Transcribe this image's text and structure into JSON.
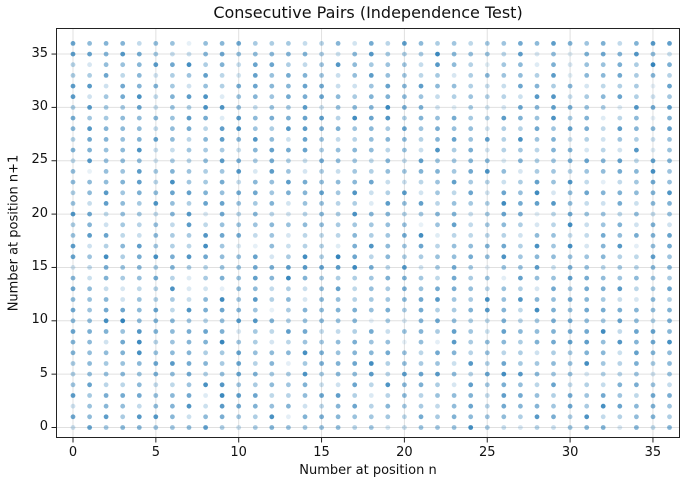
{
  "figure": {
    "background": "#ffffff",
    "text_color": "#111111",
    "spine_color": "#222222"
  },
  "chart_data": {
    "type": "scatter",
    "title": "Consecutive Pairs (Independence Test)",
    "xlabel": "Number at position n",
    "ylabel": "Number at position n+1",
    "x_range": [
      0,
      36
    ],
    "y_range": [
      0,
      36
    ],
    "x_tick_values": [
      0,
      5,
      10,
      15,
      20,
      25,
      30,
      35
    ],
    "x_tick_labels": [
      "0",
      "5",
      "10",
      "15",
      "20",
      "25",
      "30",
      "35"
    ],
    "y_tick_values": [
      0,
      5,
      10,
      15,
      20,
      25,
      30,
      35
    ],
    "y_tick_labels": [
      "0",
      "5",
      "10",
      "15",
      "20",
      "25",
      "30",
      "35"
    ],
    "points_description": "One marker at every integer pair (n, n+1) on a 37x37 grid, values 0-36 on both axes; per-marker opacity varies with pair frequency and appears random",
    "n_points": 1369,
    "marker_color": "#1f77b4",
    "marker_radius_px": 2.4,
    "marker_alpha_range": [
      0.08,
      0.92
    ],
    "alpha_seed": 1337,
    "grid": true,
    "grid_color": "#e0e0e0",
    "legend": null
  }
}
